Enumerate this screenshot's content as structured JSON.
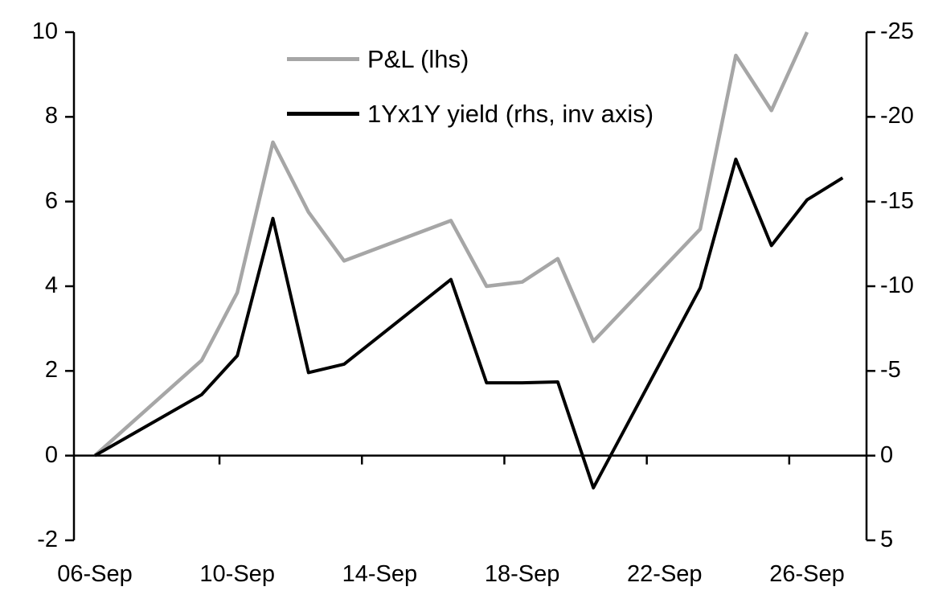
{
  "chart_data": {
    "type": "line",
    "title": "",
    "xlabel": "",
    "ylabel_left": "",
    "ylabel_right": "",
    "grid": false,
    "legend_position": "inside-top-center",
    "x_tick_labels": [
      "06-Sep",
      "10-Sep",
      "14-Sep",
      "18-Sep",
      "22-Sep",
      "26-Sep"
    ],
    "x_tick_days": [
      0,
      4,
      8,
      12,
      16,
      20
    ],
    "left_axis": {
      "ticks": [
        10,
        8,
        6,
        4,
        2,
        0,
        -2
      ],
      "max": 10,
      "min": -2
    },
    "right_axis": {
      "ticks": [
        -25,
        -20,
        -15,
        -10,
        -5,
        0,
        5
      ],
      "top_value": -25,
      "bottom_value": 5,
      "inverted": true
    },
    "series": [
      {
        "name": "P&L (lhs)",
        "axis": "left",
        "color": "#a6a6a6",
        "dates": [
          "06-Sep",
          "09-Sep",
          "10-Sep",
          "11-Sep",
          "12-Sep",
          "13-Sep",
          "16-Sep",
          "17-Sep",
          "18-Sep",
          "19-Sep",
          "20-Sep",
          "23-Sep",
          "24-Sep",
          "25-Sep",
          "26-Sep"
        ],
        "x_days": [
          0,
          3,
          4,
          5,
          6,
          7,
          10,
          11,
          12,
          13,
          14,
          17,
          18,
          19,
          20
        ],
        "values": [
          0,
          2.25,
          3.85,
          7.4,
          5.75,
          4.6,
          5.55,
          4.0,
          4.1,
          4.65,
          2.7,
          5.35,
          9.45,
          8.15,
          10.0
        ]
      },
      {
        "name": "1Yx1Y yield (rhs, inv axis)",
        "axis": "right",
        "color": "#000000",
        "dates": [
          "06-Sep",
          "09-Sep",
          "10-Sep",
          "11-Sep",
          "12-Sep",
          "13-Sep",
          "16-Sep",
          "17-Sep",
          "18-Sep",
          "19-Sep",
          "20-Sep",
          "23-Sep",
          "24-Sep",
          "25-Sep",
          "26-Sep",
          "27-Sep"
        ],
        "x_days": [
          0,
          3,
          4,
          5,
          6,
          7,
          10,
          11,
          12,
          13,
          14,
          17,
          18,
          19,
          20,
          21
        ],
        "values": [
          0,
          -3.6,
          -5.9,
          -14.0,
          -4.9,
          -5.4,
          -10.4,
          -4.3,
          -4.3,
          -4.35,
          1.9,
          -9.9,
          -17.5,
          -12.4,
          -15.1,
          -16.4
        ]
      }
    ],
    "legend": [
      {
        "label": "P&L (lhs)",
        "color": "#a6a6a6"
      },
      {
        "label": "1Yx1Y yield (rhs, inv axis)",
        "color": "#000000"
      }
    ]
  }
}
